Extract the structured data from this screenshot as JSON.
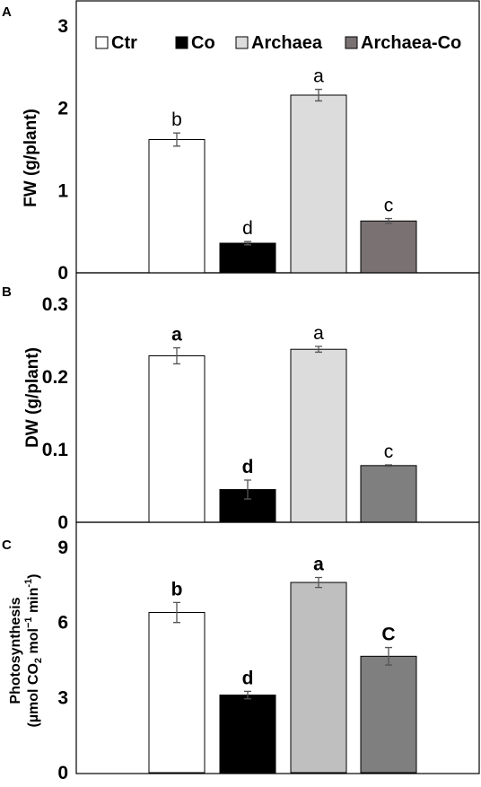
{
  "colors": {
    "Ctr": "#ffffff",
    "Co": "#000000",
    "Archaea_A": "#dcdcdc",
    "Archaea_B": "#dcdcdc",
    "Archaea_C": "#bfbfbf",
    "ArchaeaCo_A": "#7a7272",
    "ArchaeaCo_B": "#7f7f7f",
    "ArchaeaCo_C": "#7f7f7f",
    "stroke": "#000000",
    "error_bar": "#555555"
  },
  "legend": {
    "placement": "top",
    "entries": [
      "Ctr",
      "Co",
      "Archaea",
      "Archaea-Co"
    ]
  },
  "chart_data": [
    {
      "panel_label": "A",
      "type": "bar",
      "categories": [
        "Ctr",
        "Co",
        "Archaea",
        "Archaea-Co"
      ],
      "values": [
        1.62,
        0.36,
        2.16,
        0.63
      ],
      "errors": [
        0.08,
        0.02,
        0.07,
        0.03
      ],
      "significance": [
        "b",
        "d",
        "a",
        "c"
      ],
      "significance_bold": false,
      "ylabel": "FW (g/plant)",
      "ylim": [
        0,
        3
      ],
      "yticks": [
        "0",
        "1",
        "2",
        "3"
      ],
      "grid": false,
      "legend": "top"
    },
    {
      "panel_label": "B",
      "type": "bar",
      "categories": [
        "Ctr",
        "Co",
        "Archaea",
        "Archaea-Co"
      ],
      "values": [
        0.229,
        0.045,
        0.238,
        0.078
      ],
      "errors": [
        0.011,
        0.013,
        0.004,
        0.001
      ],
      "significance": [
        "a",
        "d",
        "a",
        "c"
      ],
      "significance_bold": [
        true,
        true,
        false,
        false
      ],
      "ylabel": "DW (g/plant)",
      "ylim": [
        0,
        0.3
      ],
      "yticks": [
        "0",
        "0.1",
        "0.2",
        "0.3"
      ],
      "grid": false
    },
    {
      "panel_label": "C",
      "type": "bar",
      "categories": [
        "Ctr",
        "Co",
        "Archaea",
        "Archaea-Co"
      ],
      "values": [
        6.4,
        3.1,
        7.6,
        4.65
      ],
      "errors": [
        0.4,
        0.15,
        0.2,
        0.35
      ],
      "significance": [
        "b",
        "d",
        "a",
        "C"
      ],
      "significance_bold": true,
      "ylabel_line1": "Photosynthesis",
      "ylabel_line2_parts": [
        "(µmol CO",
        "2",
        " mol",
        "−1",
        " min",
        "-1",
        ")"
      ],
      "ylim": [
        0,
        9
      ],
      "yticks": [
        "0",
        "3",
        "6",
        "9"
      ],
      "grid": false
    }
  ]
}
